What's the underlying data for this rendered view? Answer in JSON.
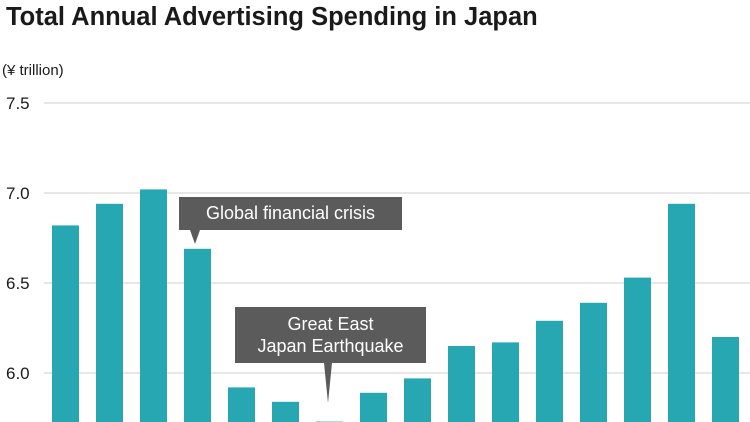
{
  "chart_data": {
    "type": "bar",
    "title": "Total Annual Advertising Spending in Japan",
    "unit_label": "(¥ trillion)",
    "ylim": [
      5.75,
      7.5
    ],
    "yticks": [
      "7.5",
      "7.0",
      "6.5",
      "6.0"
    ],
    "grid": true,
    "color": "#27a7b1",
    "values": [
      6.82,
      6.94,
      7.02,
      6.69,
      5.92,
      5.84,
      5.73,
      5.89,
      5.97,
      6.15,
      6.17,
      6.29,
      6.39,
      6.53,
      6.94,
      6.2
    ],
    "annotations": [
      {
        "text": "Global financial crisis"
      },
      {
        "lines": [
          "Great East",
          "Japan Earthquake"
        ]
      }
    ]
  }
}
